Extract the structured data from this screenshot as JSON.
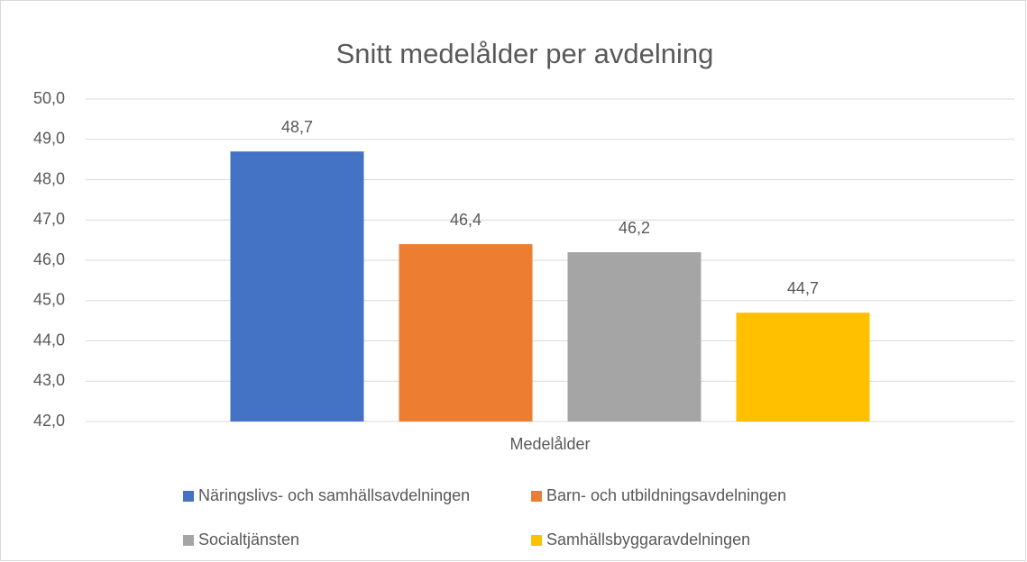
{
  "chart_data": {
    "type": "bar",
    "title": "Snitt medelålder per avdelning",
    "categories": [
      "Medelålder"
    ],
    "series": [
      {
        "name": "Näringslivs- och samhällsavdelningen",
        "color": "#4472c4",
        "values": [
          48.7
        ],
        "value_labels": [
          "48,7"
        ]
      },
      {
        "name": "Barn- och utbildningsavdelningen",
        "color": "#ed7d31",
        "values": [
          46.4
        ],
        "value_labels": [
          "46,4"
        ]
      },
      {
        "name": "Socialtjänsten",
        "color": "#a5a5a5",
        "values": [
          46.2
        ],
        "value_labels": [
          "46,2"
        ]
      },
      {
        "name": "Samhällsbyggaravdelningen",
        "color": "#ffc000",
        "values": [
          44.7
        ],
        "value_labels": [
          "44,7"
        ]
      }
    ],
    "ylim": [
      42,
      50
    ],
    "yticks": [
      {
        "value": 42,
        "label": "42,0"
      },
      {
        "value": 43,
        "label": "43,0"
      },
      {
        "value": 44,
        "label": "44,0"
      },
      {
        "value": 45,
        "label": "45,0"
      },
      {
        "value": 46,
        "label": "46,0"
      },
      {
        "value": 47,
        "label": "47,0"
      },
      {
        "value": 48,
        "label": "48,0"
      },
      {
        "value": 49,
        "label": "49,0"
      },
      {
        "value": 50,
        "label": "50,0"
      }
    ],
    "grid": true,
    "legend": "bottom"
  }
}
